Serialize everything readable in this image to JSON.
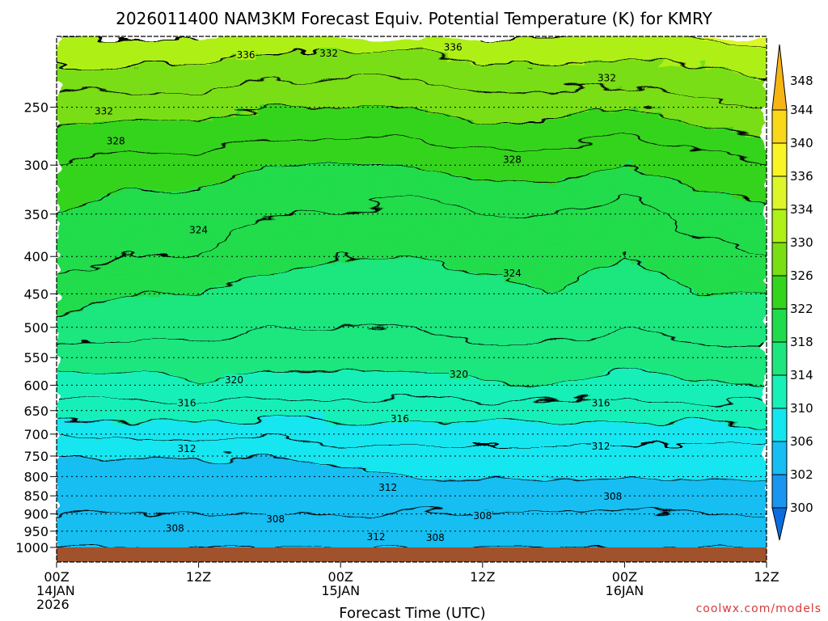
{
  "chart_data": {
    "type": "heatmap",
    "title": "2026011400 NAM3KM Forecast Equiv. Potential Temperature (K) for KMRY",
    "xlabel": "Forecast Time (UTC)",
    "ylabel": "",
    "y_scale": "log",
    "y_reversed": true,
    "x_range_hours": [
      0,
      60
    ],
    "y_range": [
      1000,
      200
    ],
    "x_ticks": [
      {
        "hour": 0,
        "lines": [
          "00Z",
          "14JAN",
          "2026"
        ]
      },
      {
        "hour": 12,
        "lines": [
          "12Z"
        ]
      },
      {
        "hour": 24,
        "lines": [
          "00Z",
          "15JAN"
        ]
      },
      {
        "hour": 36,
        "lines": [
          "12Z"
        ]
      },
      {
        "hour": 48,
        "lines": [
          "00Z",
          "16JAN"
        ]
      },
      {
        "hour": 60,
        "lines": [
          "12Z"
        ]
      }
    ],
    "y_ticks": [
      250,
      300,
      350,
      400,
      450,
      500,
      550,
      600,
      650,
      700,
      750,
      800,
      850,
      900,
      950,
      1000
    ],
    "grid": "dotted horizontal at pressure ticks",
    "colorbar": {
      "levels": [
        300,
        302,
        306,
        310,
        314,
        318,
        322,
        326,
        330,
        334,
        336,
        340,
        344,
        348
      ],
      "colors": [
        "#0a6ee0",
        "#1a96f0",
        "#16bef2",
        "#14e6f0",
        "#18f0b8",
        "#1ee67e",
        "#20dc4c",
        "#34d41c",
        "#7ade14",
        "#aef018",
        "#dcf62a",
        "#f8f426",
        "#f8d818",
        "#f8b414"
      ],
      "label_values": [
        300,
        302,
        306,
        310,
        314,
        318,
        322,
        326,
        330,
        334,
        336,
        340,
        344,
        348
      ]
    },
    "profile": {
      "hours": [
        0,
        6,
        12,
        18,
        24,
        30,
        36,
        42,
        48,
        54,
        60
      ],
      "pressures": [
        1000,
        950,
        900,
        850,
        800,
        750,
        700,
        650,
        600,
        550,
        500,
        450,
        400,
        350,
        300,
        250,
        200
      ],
      "values": [
        [
          306,
          307,
          308,
          309,
          309,
          310,
          312,
          315,
          317,
          319,
          321,
          323,
          325,
          326,
          328,
          331,
          336
        ],
        [
          306,
          307,
          308,
          309,
          309,
          310,
          313,
          315,
          317,
          319,
          321,
          322,
          324,
          325,
          327,
          331,
          336
        ],
        [
          306,
          307,
          308,
          309,
          309,
          310,
          313,
          315,
          318,
          319,
          321,
          322,
          324,
          325,
          327,
          331,
          336
        ],
        [
          306,
          307,
          308,
          309,
          309,
          310,
          312,
          315,
          317,
          319,
          320,
          321,
          323,
          324,
          326,
          330,
          335
        ],
        [
          306,
          307,
          308,
          309,
          309,
          311,
          313,
          315,
          317,
          319,
          320,
          321,
          322,
          324,
          326,
          330,
          335
        ],
        [
          306,
          307,
          308,
          309,
          310,
          311,
          313,
          315,
          317,
          319,
          320,
          321,
          322,
          323,
          326,
          330,
          335
        ],
        [
          306,
          307,
          308,
          309,
          310,
          311,
          313,
          315,
          318,
          319,
          321,
          321,
          323,
          324,
          327,
          331,
          336
        ],
        [
          306,
          307,
          308,
          309,
          310,
          311,
          313,
          315,
          318,
          319,
          321,
          322,
          323,
          324,
          327,
          331,
          336
        ],
        [
          306,
          307,
          308,
          309,
          310,
          311,
          313,
          315,
          317,
          319,
          320,
          321,
          322,
          323,
          326,
          330,
          336
        ],
        [
          306,
          307,
          308,
          309,
          310,
          311,
          313,
          315,
          318,
          319,
          321,
          322,
          323,
          325,
          327,
          331,
          336
        ],
        [
          306,
          307,
          308,
          309,
          310,
          311,
          313,
          315,
          318,
          319,
          321,
          322,
          324,
          325,
          328,
          332,
          337
        ]
      ]
    },
    "contour_labels": [
      {
        "text": "336",
        "hour": 16,
        "pressure": 212
      },
      {
        "text": "332",
        "hour": 23,
        "pressure": 211
      },
      {
        "text": "336",
        "hour": 33.5,
        "pressure": 207
      },
      {
        "text": "332",
        "hour": 46.5,
        "pressure": 228
      },
      {
        "text": "332",
        "hour": 4,
        "pressure": 253
      },
      {
        "text": "328",
        "hour": 5,
        "pressure": 278
      },
      {
        "text": "328",
        "hour": 38.5,
        "pressure": 295
      },
      {
        "text": "324",
        "hour": 12,
        "pressure": 368
      },
      {
        "text": "324",
        "hour": 38.5,
        "pressure": 422
      },
      {
        "text": "320",
        "hour": 15,
        "pressure": 590
      },
      {
        "text": "320",
        "hour": 34,
        "pressure": 580
      },
      {
        "text": "316",
        "hour": 11,
        "pressure": 635
      },
      {
        "text": "316",
        "hour": 29,
        "pressure": 667
      },
      {
        "text": "316",
        "hour": 46,
        "pressure": 635
      },
      {
        "text": "312",
        "hour": 11,
        "pressure": 733
      },
      {
        "text": "312",
        "hour": 46,
        "pressure": 727
      },
      {
        "text": "312",
        "hour": 28,
        "pressure": 828
      },
      {
        "text": "312",
        "hour": 27,
        "pressure": 968
      },
      {
        "text": "308",
        "hour": 47,
        "pressure": 852
      },
      {
        "text": "308",
        "hour": 18.5,
        "pressure": 915
      },
      {
        "text": "308",
        "hour": 36,
        "pressure": 905
      },
      {
        "text": "308",
        "hour": 10,
        "pressure": 942
      },
      {
        "text": "308",
        "hour": 32,
        "pressure": 970
      }
    ]
  },
  "credit": "coolwx.com/models"
}
